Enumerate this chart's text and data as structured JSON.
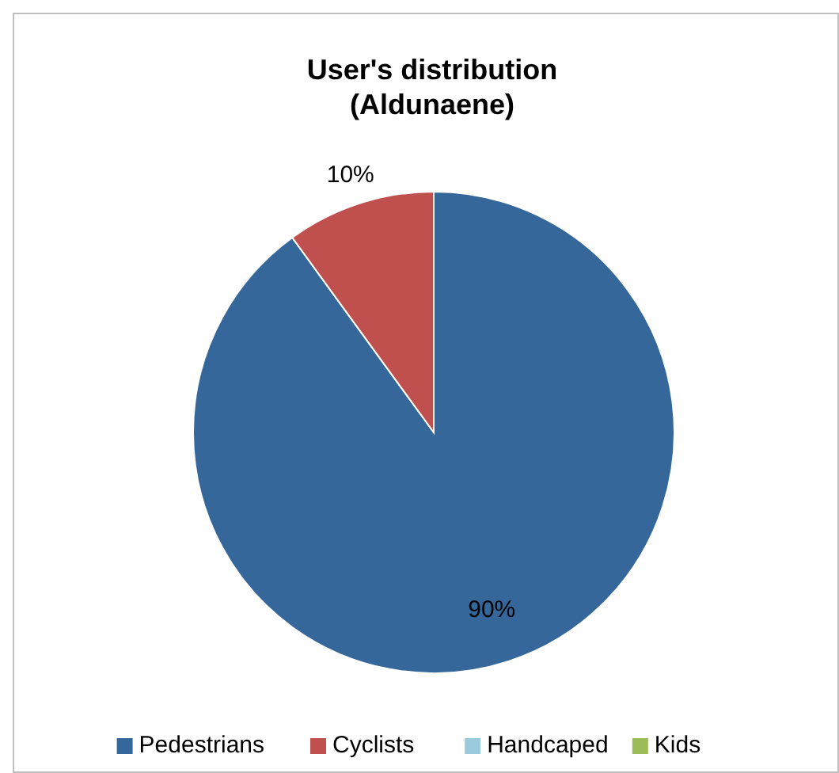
{
  "chart_data": {
    "type": "pie",
    "title": "User's distribution (Aldunaene)",
    "categories": [
      "Pedestrians",
      "Cyclists",
      "Handcaped",
      "Kids"
    ],
    "values": [
      90,
      10,
      0,
      0
    ],
    "colors": [
      "#35679a",
      "#c0504d",
      "#9bc9dd",
      "#9bbb59"
    ],
    "value_labels": [
      "90%",
      "10%",
      null,
      null
    ],
    "legend": "bottom"
  }
}
